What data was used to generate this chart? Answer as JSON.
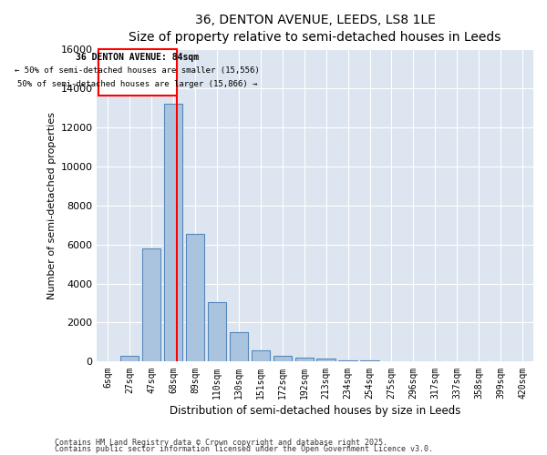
{
  "title": "36, DENTON AVENUE, LEEDS, LS8 1LE",
  "subtitle": "Size of property relative to semi-detached houses in Leeds",
  "xlabel": "Distribution of semi-detached houses by size in Leeds",
  "ylabel": "Number of semi-detached properties",
  "bar_labels": [
    "6sqm",
    "27sqm",
    "47sqm",
    "68sqm",
    "89sqm",
    "110sqm",
    "130sqm",
    "151sqm",
    "172sqm",
    "192sqm",
    "213sqm",
    "234sqm",
    "254sqm",
    "275sqm",
    "296sqm",
    "317sqm",
    "337sqm",
    "358sqm",
    "399sqm",
    "420sqm"
  ],
  "bar_values": [
    0,
    300,
    5800,
    13200,
    6550,
    3050,
    1500,
    600,
    300,
    230,
    150,
    50,
    80,
    0,
    0,
    0,
    0,
    0,
    0,
    0
  ],
  "bar_color": "#aac4e0",
  "bar_edgecolor": "#5588bb",
  "vline_x_index": 3,
  "vline_color": "red",
  "annotation_title": "36 DENTON AVENUE: 84sqm",
  "annotation_left": "← 50% of semi-detached houses are smaller (15,556)",
  "annotation_right": "50% of semi-detached houses are larger (15,866) →",
  "ylim": [
    0,
    16000
  ],
  "yticks": [
    0,
    2000,
    4000,
    6000,
    8000,
    10000,
    12000,
    14000,
    16000
  ],
  "xlim_left": -0.5,
  "xlim_right": 19.5,
  "background_color": "#dde6f0",
  "footer1": "Contains HM Land Registry data © Crown copyright and database right 2025.",
  "footer2": "Contains public sector information licensed under the Open Government Licence v3.0."
}
